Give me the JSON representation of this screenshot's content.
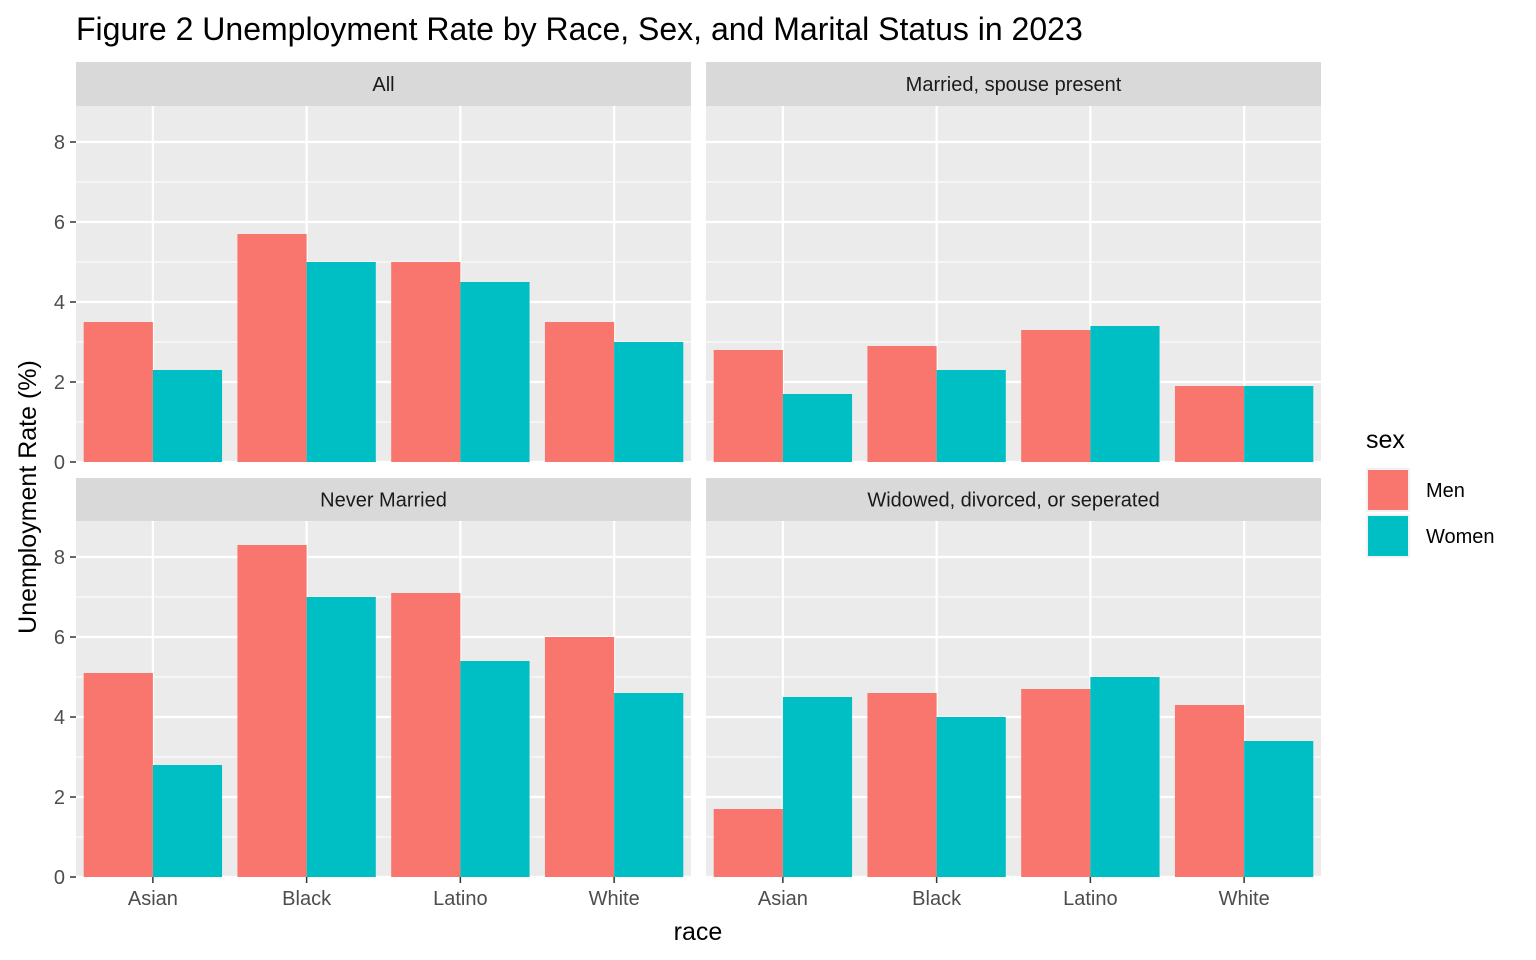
{
  "chart_data": {
    "type": "bar",
    "title": "Figure 2 Unemployment Rate by Race, Sex, and Marital Status in 2023",
    "xlabel": "race",
    "ylabel": "Unemployment Rate (%)",
    "ylim": [
      0,
      8.9
    ],
    "yticks": [
      "0",
      "2",
      "4",
      "6",
      "8"
    ],
    "categories": [
      "Asian",
      "Black",
      "Latino",
      "White"
    ],
    "grid": true,
    "legend": {
      "title": "sex",
      "placement": "right",
      "entries": [
        {
          "name": "Men",
          "color": "#F8766D"
        },
        {
          "name": "Women",
          "color": "#00BFC4"
        }
      ]
    },
    "colors": {
      "panel_bg": "#EBEBEB",
      "strip_bg": "#D9D9D9",
      "grid": "#FFFFFF",
      "men": "#F8766D",
      "women": "#00BFC4"
    },
    "facets": [
      {
        "label": "All",
        "series": [
          {
            "name": "Men",
            "values": [
              3.5,
              5.7,
              5.0,
              3.5
            ]
          },
          {
            "name": "Women",
            "values": [
              2.3,
              5.0,
              4.5,
              3.0
            ]
          }
        ]
      },
      {
        "label": "Married, spouse present",
        "series": [
          {
            "name": "Men",
            "values": [
              2.8,
              2.9,
              3.3,
              1.9
            ]
          },
          {
            "name": "Women",
            "values": [
              1.7,
              2.3,
              3.4,
              1.9
            ]
          }
        ]
      },
      {
        "label": "Never Married",
        "series": [
          {
            "name": "Men",
            "values": [
              5.1,
              8.3,
              7.1,
              6.0
            ]
          },
          {
            "name": "Women",
            "values": [
              2.8,
              7.0,
              5.4,
              4.6
            ]
          }
        ]
      },
      {
        "label": "Widowed, divorced, or seperated",
        "series": [
          {
            "name": "Men",
            "values": [
              1.7,
              4.6,
              4.7,
              4.3
            ]
          },
          {
            "name": "Women",
            "values": [
              4.5,
              4.0,
              5.0,
              3.4
            ]
          }
        ]
      }
    ]
  }
}
